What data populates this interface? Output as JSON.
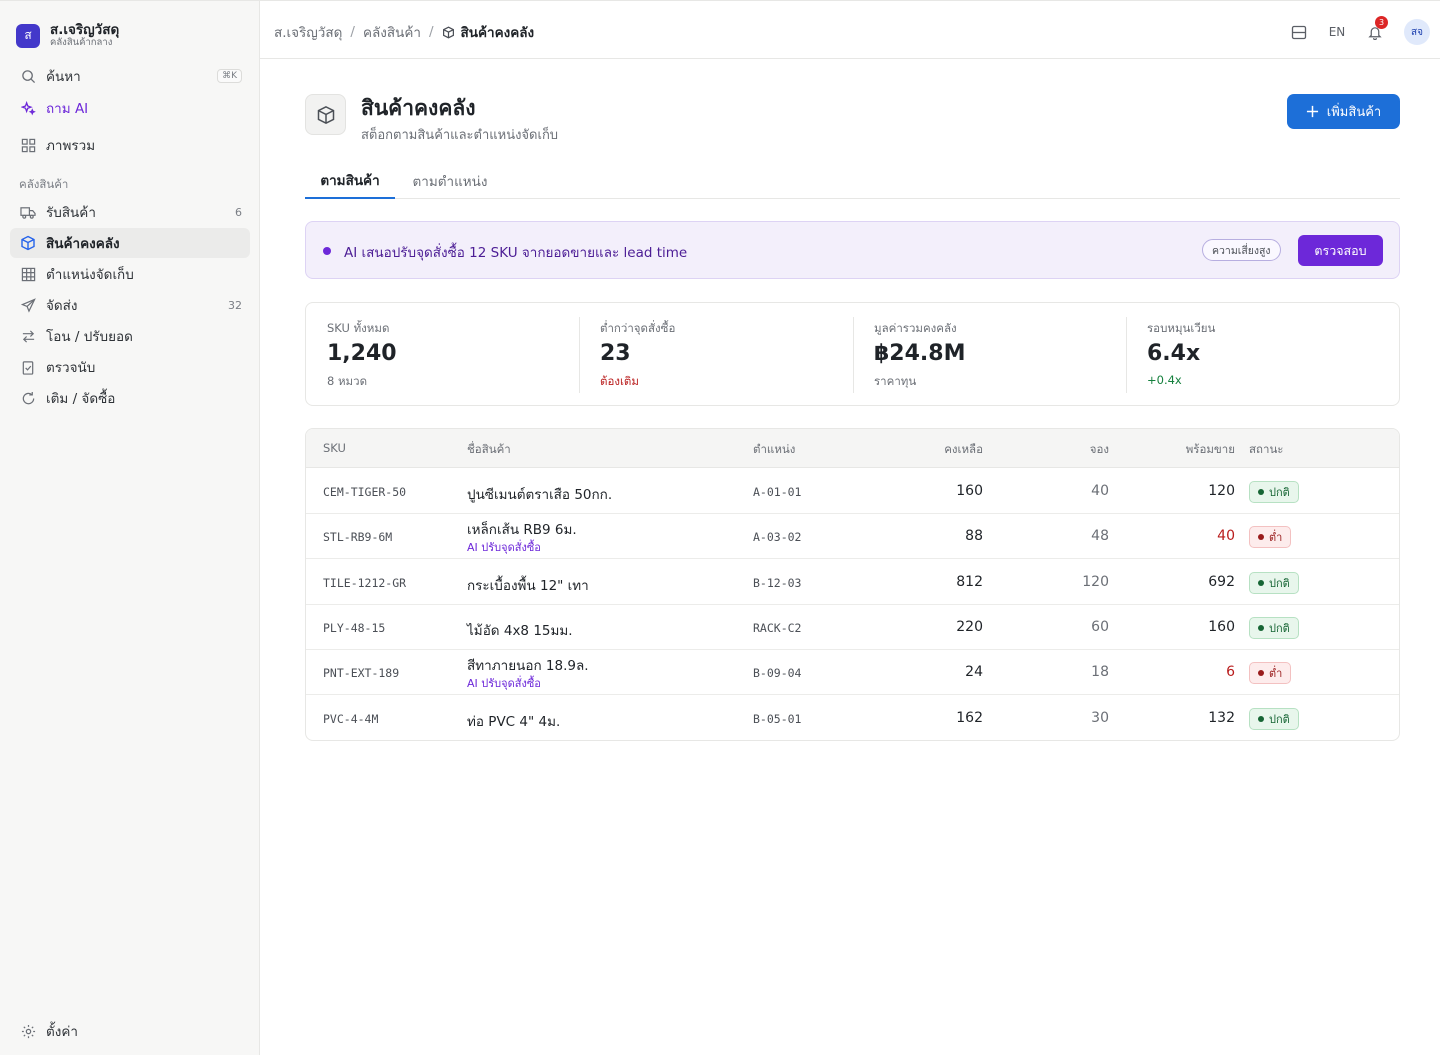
{
  "brand": {
    "logo_letter": "ส",
    "name": "ส.เจริญวัสดุ",
    "subtitle": "คลังสินค้ากลาง"
  },
  "sidebar": {
    "search": {
      "label": "ค้นหา",
      "shortcut": "⌘K"
    },
    "ask_ai": "ถาม AI",
    "overview": "ภาพรวม",
    "section_label": "คลังสินค้า",
    "items": [
      {
        "label": "รับสินค้า",
        "count": "6",
        "icon": "truck-icon"
      },
      {
        "label": "สินค้าคงคลัง",
        "count": "",
        "icon": "box-icon"
      },
      {
        "label": "ตำแหน่งจัดเก็บ",
        "count": "",
        "icon": "grid-icon"
      },
      {
        "label": "จัดส่ง",
        "count": "32",
        "icon": "send-icon"
      },
      {
        "label": "โอน / ปรับยอด",
        "count": "",
        "icon": "transfer-icon"
      },
      {
        "label": "ตรวจนับ",
        "count": "",
        "icon": "clipboard-check-icon"
      },
      {
        "label": "เติม / จัดซื้อ",
        "count": "",
        "icon": "refresh-icon"
      }
    ],
    "settings": "ตั้งค่า"
  },
  "topbar": {
    "breadcrumbs": [
      "ส.เจริญวัสดุ",
      "คลังสินค้า",
      "สินค้าคงคลัง"
    ],
    "lang": "EN",
    "notification_count": "3",
    "avatar": "สจ"
  },
  "page": {
    "title": "สินค้าคงคลัง",
    "subtitle": "สต็อกตามสินค้าและตำแหน่งจัดเก็บ",
    "add_button": "เพิ่มสินค้า",
    "tabs": [
      "ตามสินค้า",
      "ตามตำแหน่ง"
    ]
  },
  "ai_banner": {
    "text": "AI เสนอปรับจุดสั่งซื้อ 12 SKU จากยอดขายและ lead time",
    "risk": "ความเสี่ยงสูง",
    "action": "ตรวจสอบ"
  },
  "kpis": [
    {
      "label": "SKU ทั้งหมด",
      "value": "1,240",
      "note": "8 หมวด",
      "tone": "neutral"
    },
    {
      "label": "ต่ำกว่าจุดสั่งซื้อ",
      "value": "23",
      "note": "ต้องเติม",
      "tone": "warn"
    },
    {
      "label": "มูลค่ารวมคงคลัง",
      "value": "฿24.8M",
      "note": "ราคาทุน",
      "tone": "neutral"
    },
    {
      "label": "รอบหมุนเวียน",
      "value": "6.4x",
      "note": "+0.4x",
      "tone": "good"
    }
  ],
  "table": {
    "headers": {
      "sku": "SKU",
      "name": "ชื่อสินค้า",
      "location": "ตำแหน่ง",
      "remaining": "คงเหลือ",
      "reserved": "จอง",
      "available": "พร้อมขาย",
      "status": "สถานะ"
    },
    "rows": [
      {
        "sku": "CEM-TIGER-50",
        "name": "ปูนซีเมนต์ตราเสือ 50กก.",
        "ai_note": "",
        "location": "A-01-01",
        "remaining": "160",
        "reserved": "40",
        "available": "120",
        "status": "ปกติ",
        "status_type": "ok"
      },
      {
        "sku": "STL-RB9-6M",
        "name": "เหล็กเส้น RB9 6ม.",
        "ai_note": "AI ปรับจุดสั่งซื้อ",
        "location": "A-03-02",
        "remaining": "88",
        "reserved": "48",
        "available": "40",
        "status": "ต่ำ",
        "status_type": "low"
      },
      {
        "sku": "TILE-1212-GR",
        "name": "กระเบื้องพื้น 12\" เทา",
        "ai_note": "",
        "location": "B-12-03",
        "remaining": "812",
        "reserved": "120",
        "available": "692",
        "status": "ปกติ",
        "status_type": "ok"
      },
      {
        "sku": "PLY-48-15",
        "name": "ไม้อัด 4x8 15มม.",
        "ai_note": "",
        "location": "RACK-C2",
        "remaining": "220",
        "reserved": "60",
        "available": "160",
        "status": "ปกติ",
        "status_type": "ok"
      },
      {
        "sku": "PNT-EXT-189",
        "name": "สีทาภายนอก 18.9ล.",
        "ai_note": "AI ปรับจุดสั่งซื้อ",
        "location": "B-09-04",
        "remaining": "24",
        "reserved": "18",
        "available": "6",
        "status": "ต่ำ",
        "status_type": "low"
      },
      {
        "sku": "PVC-4-4M",
        "name": "ท่อ PVC 4\" 4ม.",
        "ai_note": "",
        "location": "B-05-01",
        "remaining": "162",
        "reserved": "30",
        "available": "132",
        "status": "ปกติ",
        "status_type": "ok"
      }
    ]
  }
}
